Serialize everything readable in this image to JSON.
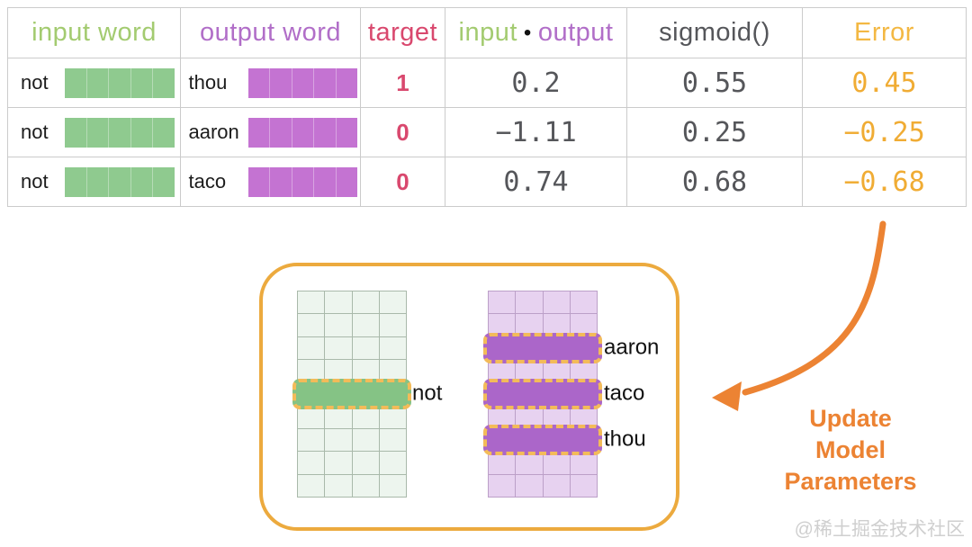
{
  "colors": {
    "input_green": "#a3cb70",
    "output_purple": "#b16ec8",
    "target_red": "#d9486e",
    "dark_gray": "#55565a",
    "error_gold": "#f3b843",
    "error_value_gold": "#f0ac34",
    "orange_accent": "#ec8333",
    "box_border": "#ecaa3e",
    "green_bar": "#8fca8f",
    "purple_bar": "#c473d2",
    "green_cell_bg": "#edf5ee",
    "green_cell_border": "#a9b9aa",
    "purple_cell_bg": "#e7d2f0",
    "purple_cell_border": "#bca0c8",
    "green_highlight": "#85c385",
    "purple_highlight": "#ab66c9",
    "dash_orange": "#f3bb59",
    "table_border": "#cbcbcb",
    "text_black": "#1c1c1c",
    "watermark_gray": "#cfcfcf"
  },
  "table": {
    "headers": {
      "input_word": "input word",
      "output_word": "output word",
      "target": "target",
      "dot_left": "input",
      "dot_symbol": "•",
      "dot_right": "output",
      "sigmoid": "sigmoid()",
      "error": "Error"
    },
    "rows": [
      {
        "input_word": "not",
        "output_word": "thou",
        "target": "1",
        "dot_product": "0.2",
        "sigmoid": "0.55",
        "error": "0.45"
      },
      {
        "input_word": "not",
        "output_word": "aaron",
        "target": "0",
        "dot_product": "−1.11",
        "sigmoid": "0.25",
        "error": "−0.25"
      },
      {
        "input_word": "not",
        "output_word": "taco",
        "target": "0",
        "dot_product": "0.74",
        "sigmoid": "0.68",
        "error": "−0.68"
      }
    ]
  },
  "diagram": {
    "matrices": [
      {
        "name": "input-embedding-matrix",
        "color": "green",
        "cols": 4,
        "rows": 9,
        "highlights": [
          {
            "row": 4,
            "label": "not"
          }
        ]
      },
      {
        "name": "output-embedding-matrix",
        "color": "purple",
        "cols": 4,
        "rows": 9,
        "highlights": [
          {
            "row": 2,
            "label": "aaron"
          },
          {
            "row": 4,
            "label": "taco"
          },
          {
            "row": 6,
            "label": "thou"
          }
        ]
      }
    ]
  },
  "annotation": {
    "update_label_lines": [
      "Update",
      "Model",
      "Parameters"
    ]
  },
  "watermark": "@稀土掘金技术社区"
}
